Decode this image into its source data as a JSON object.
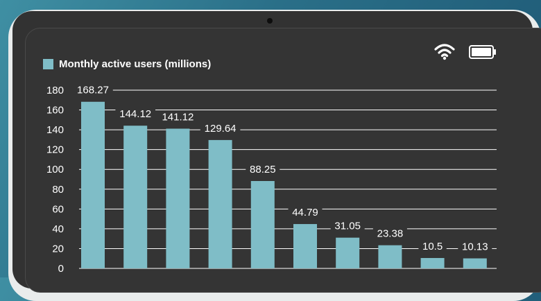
{
  "colors": {
    "bar": "#7fbdc7",
    "grid": "#ffffff",
    "screen": "#343434"
  },
  "status_bar": {
    "wifi_icon": "wifi-icon",
    "battery_icon": "battery-icon"
  },
  "chart_data": {
    "type": "bar",
    "title": "",
    "legend": [
      "Monthly active users (millions)"
    ],
    "xlabel": "",
    "ylabel": "",
    "ylim": [
      0,
      180
    ],
    "yticks": [
      0,
      20,
      40,
      60,
      80,
      100,
      120,
      140,
      160,
      180
    ],
    "grid": true,
    "categories": [
      "",
      "",
      "",
      "",
      "",
      "",
      "",
      "",
      "",
      ""
    ],
    "series": [
      {
        "name": "Monthly active users (millions)",
        "values": [
          168.27,
          144.12,
          141.12,
          129.64,
          88.25,
          44.79,
          31.05,
          23.38,
          10.5,
          10.13
        ],
        "labels": [
          "168.27",
          "144.12",
          "141.12",
          "129.64",
          "88.25",
          "44.79",
          "31.05",
          "23.38",
          "10.5",
          "10.13"
        ]
      }
    ]
  }
}
